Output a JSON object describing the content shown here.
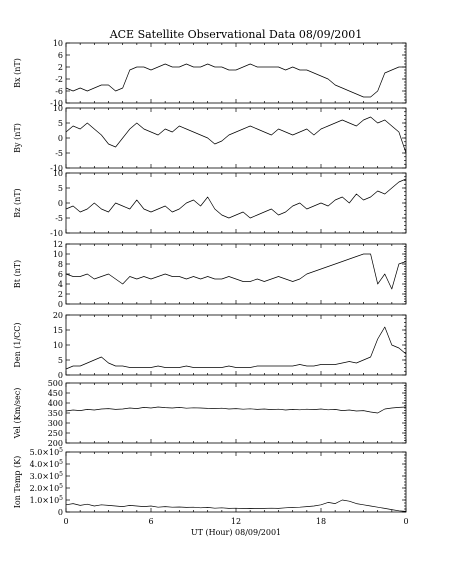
{
  "title": "ACE Satellite Observational Data   08/09/2001",
  "xlabel": "UT (Hour)   08/09/2001",
  "x_ticks": [
    "0",
    "6",
    "12",
    "18",
    "0"
  ],
  "chart_data": [
    {
      "type": "line",
      "ylabel": "Bx (nT)",
      "ylim": [
        -10,
        10
      ],
      "yticks": [
        "-10",
        "-6",
        "-2",
        "2",
        "6",
        "10"
      ],
      "x": [
        0,
        0.5,
        1,
        1.5,
        2,
        2.5,
        3,
        3.5,
        4,
        4.5,
        5,
        5.5,
        6,
        6.5,
        7,
        7.5,
        8,
        8.5,
        9,
        9.5,
        10,
        10.5,
        11,
        11.5,
        12,
        12.5,
        13,
        13.5,
        14,
        14.5,
        15,
        15.5,
        16,
        16.5,
        17,
        17.5,
        18,
        18.5,
        19,
        19.5,
        20,
        20.5,
        21,
        21.5,
        22,
        22.5,
        23,
        23.5,
        24
      ],
      "series": [
        {
          "values": [
            -5,
            -6,
            -5,
            -6,
            -5,
            -4,
            -4,
            -6,
            -5,
            1,
            2,
            2,
            1,
            2,
            3,
            2,
            2,
            3,
            2,
            2,
            3,
            2,
            2,
            1,
            1,
            2,
            3,
            2,
            2,
            2,
            2,
            1,
            2,
            1,
            1,
            0,
            -1,
            -2,
            -4,
            -5,
            -6,
            -7,
            -8,
            -8,
            -6,
            0,
            1,
            2,
            2
          ]
        }
      ]
    },
    {
      "type": "line",
      "ylabel": "By (nT)",
      "ylim": [
        -10,
        10
      ],
      "yticks": [
        "-10",
        "-5",
        "0",
        "5",
        "10"
      ],
      "x": [
        0,
        0.5,
        1,
        1.5,
        2,
        2.5,
        3,
        3.5,
        4,
        4.5,
        5,
        5.5,
        6,
        6.5,
        7,
        7.5,
        8,
        8.5,
        9,
        9.5,
        10,
        10.5,
        11,
        11.5,
        12,
        12.5,
        13,
        13.5,
        14,
        14.5,
        15,
        15.5,
        16,
        16.5,
        17,
        17.5,
        18,
        18.5,
        19,
        19.5,
        20,
        20.5,
        21,
        21.5,
        22,
        22.5,
        23,
        23.5,
        24
      ],
      "series": [
        {
          "values": [
            2,
            4,
            3,
            5,
            3,
            1,
            -2,
            -3,
            0,
            3,
            5,
            3,
            2,
            1,
            3,
            2,
            4,
            3,
            2,
            1,
            0,
            -2,
            -1,
            1,
            2,
            3,
            4,
            3,
            2,
            1,
            3,
            2,
            1,
            2,
            3,
            1,
            3,
            4,
            5,
            6,
            5,
            4,
            6,
            7,
            5,
            6,
            4,
            2,
            -5
          ]
        }
      ]
    },
    {
      "type": "line",
      "ylabel": "Bz (nT)",
      "ylim": [
        -10,
        10
      ],
      "yticks": [
        "-10",
        "-5",
        "0",
        "5",
        "10"
      ],
      "x": [
        0,
        0.5,
        1,
        1.5,
        2,
        2.5,
        3,
        3.5,
        4,
        4.5,
        5,
        5.5,
        6,
        6.5,
        7,
        7.5,
        8,
        8.5,
        9,
        9.5,
        10,
        10.5,
        11,
        11.5,
        12,
        12.5,
        13,
        13.5,
        14,
        14.5,
        15,
        15.5,
        16,
        16.5,
        17,
        17.5,
        18,
        18.5,
        19,
        19.5,
        20,
        20.5,
        21,
        21.5,
        22,
        22.5,
        23,
        23.5,
        24
      ],
      "series": [
        {
          "values": [
            -2,
            -1,
            -3,
            -2,
            0,
            -2,
            -3,
            0,
            -1,
            -2,
            1,
            -2,
            -3,
            -2,
            -1,
            -3,
            -2,
            0,
            1,
            -1,
            2,
            -2,
            -4,
            -5,
            -4,
            -3,
            -5,
            -4,
            -3,
            -2,
            -4,
            -3,
            -1,
            0,
            -2,
            -1,
            0,
            -1,
            1,
            2,
            0,
            3,
            1,
            2,
            4,
            3,
            5,
            7,
            8
          ]
        }
      ]
    },
    {
      "type": "line",
      "ylabel": "Bt (nT)",
      "ylim": [
        0,
        12
      ],
      "yticks": [
        "0",
        "2",
        "4",
        "6",
        "8",
        "10",
        "12"
      ],
      "x": [
        0,
        0.5,
        1,
        1.5,
        2,
        2.5,
        3,
        3.5,
        4,
        4.5,
        5,
        5.5,
        6,
        6.5,
        7,
        7.5,
        8,
        8.5,
        9,
        9.5,
        10,
        10.5,
        11,
        11.5,
        12,
        12.5,
        13,
        13.5,
        14,
        14.5,
        15,
        15.5,
        16,
        16.5,
        17,
        17.5,
        18,
        18.5,
        19,
        19.5,
        20,
        20.5,
        21,
        21.5,
        22,
        22.5,
        23,
        23.5,
        24
      ],
      "series": [
        {
          "values": [
            6,
            5.5,
            5.5,
            6,
            5,
            5.5,
            6,
            5,
            4,
            5.5,
            5,
            5.5,
            5,
            5.5,
            6,
            5.5,
            5.5,
            5,
            5.5,
            5,
            5.5,
            5,
            5,
            5.5,
            5,
            4.5,
            4.5,
            5,
            4.5,
            5,
            5.5,
            5,
            4.5,
            5,
            6,
            6.5,
            7,
            7.5,
            8,
            8.5,
            9,
            9.5,
            10,
            10,
            4,
            6,
            3,
            8,
            8.5
          ]
        }
      ]
    },
    {
      "type": "line",
      "ylabel": "Den (1/CC)",
      "ylim": [
        0,
        20
      ],
      "yticks": [
        "0",
        "5",
        "10",
        "15",
        "20"
      ],
      "x": [
        0,
        0.5,
        1,
        1.5,
        2,
        2.5,
        3,
        3.5,
        4,
        4.5,
        5,
        5.5,
        6,
        6.5,
        7,
        7.5,
        8,
        8.5,
        9,
        9.5,
        10,
        10.5,
        11,
        11.5,
        12,
        12.5,
        13,
        13.5,
        14,
        14.5,
        15,
        15.5,
        16,
        16.5,
        17,
        17.5,
        18,
        18.5,
        19,
        19.5,
        20,
        20.5,
        21,
        21.5,
        22,
        22.5,
        23,
        23.5,
        24
      ],
      "series": [
        {
          "values": [
            2,
            3,
            3,
            4,
            5,
            6,
            4,
            3,
            3,
            2.5,
            2.5,
            2.5,
            2.5,
            3,
            2.5,
            2.5,
            2.5,
            3,
            2.5,
            2.5,
            2.5,
            2.5,
            2.5,
            3,
            2.5,
            2.5,
            2.5,
            3,
            3,
            3,
            3,
            3,
            3,
            3.5,
            3,
            3,
            3.5,
            3.5,
            3.5,
            4,
            4.5,
            4,
            5,
            6,
            12,
            16,
            10,
            9,
            7
          ]
        }
      ]
    },
    {
      "type": "line",
      "ylabel": "Vel (Km/sec)",
      "ylim": [
        200,
        500
      ],
      "yticks": [
        "200",
        "250",
        "300",
        "350",
        "400",
        "450",
        "500"
      ],
      "x": [
        0,
        0.5,
        1,
        1.5,
        2,
        2.5,
        3,
        3.5,
        4,
        4.5,
        5,
        5.5,
        6,
        6.5,
        7,
        7.5,
        8,
        8.5,
        9,
        9.5,
        10,
        10.5,
        11,
        11.5,
        12,
        12.5,
        13,
        13.5,
        14,
        14.5,
        15,
        15.5,
        16,
        16.5,
        17,
        17.5,
        18,
        18.5,
        19,
        19.5,
        20,
        20.5,
        21,
        21.5,
        22,
        22.5,
        23,
        23.5,
        24
      ],
      "series": [
        {
          "values": [
            360,
            365,
            362,
            368,
            365,
            370,
            372,
            368,
            370,
            375,
            372,
            378,
            375,
            380,
            377,
            375,
            378,
            374,
            376,
            375,
            373,
            372,
            374,
            370,
            372,
            369,
            371,
            368,
            370,
            367,
            369,
            365,
            368,
            366,
            369,
            367,
            370,
            366,
            368,
            362,
            365,
            360,
            362,
            355,
            350,
            370,
            375,
            378,
            380
          ]
        }
      ]
    },
    {
      "type": "line",
      "ylabel": "Ion Temp (K)",
      "ylim": [
        0,
        500000
      ],
      "yticks": [
        "0",
        "1.0×10",
        "2.0×10",
        "3.0×10",
        "4.0×10",
        "5.0×10"
      ],
      "ytick_exponent": "5",
      "x": [
        0,
        0.5,
        1,
        1.5,
        2,
        2.5,
        3,
        3.5,
        4,
        4.5,
        5,
        5.5,
        6,
        6.5,
        7,
        7.5,
        8,
        8.5,
        9,
        9.5,
        10,
        10.5,
        11,
        11.5,
        12,
        12.5,
        13,
        13.5,
        14,
        14.5,
        15,
        15.5,
        16,
        16.5,
        17,
        17.5,
        18,
        18.5,
        19,
        19.5,
        20,
        20.5,
        21,
        21.5,
        22,
        22.5,
        23,
        23.5,
        24
      ],
      "series": [
        {
          "values": [
            60000,
            70000,
            55000,
            65000,
            50000,
            60000,
            55000,
            50000,
            45000,
            55000,
            50000,
            45000,
            50000,
            40000,
            45000,
            40000,
            42000,
            38000,
            40000,
            35000,
            38000,
            32000,
            35000,
            30000,
            32000,
            28000,
            30000,
            28000,
            30000,
            32000,
            30000,
            35000,
            38000,
            40000,
            45000,
            50000,
            60000,
            80000,
            70000,
            100000,
            90000,
            70000,
            60000,
            50000,
            40000,
            30000,
            20000,
            10000,
            5000
          ]
        }
      ]
    }
  ]
}
